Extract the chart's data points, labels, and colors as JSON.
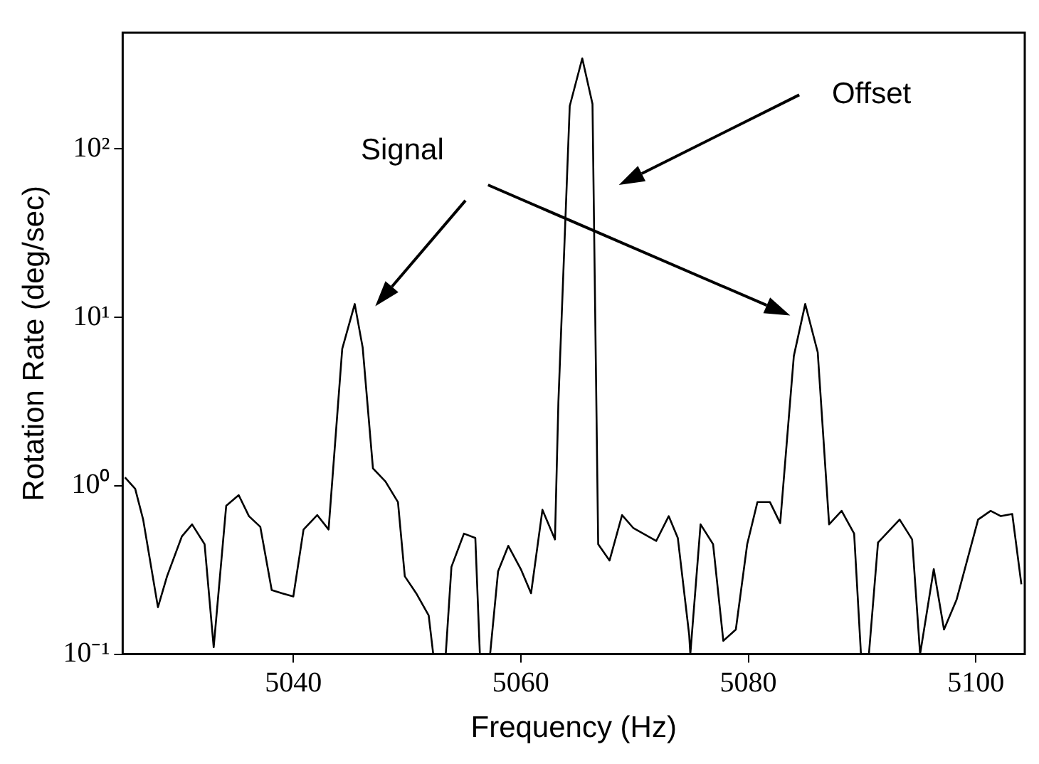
{
  "chart_data": {
    "type": "line",
    "xlabel": "Frequency (Hz)",
    "ylabel": "Rotation Rate (deg/sec)",
    "color": "#000000",
    "marker": "none",
    "line_style": "solid",
    "log": "y",
    "legend": false,
    "grid": false,
    "x": [
      5025.2,
      5026.1,
      5026.8,
      5028.1,
      5028.9,
      5030.2,
      5031.1,
      5032.2,
      5033.0,
      5034.1,
      5035.2,
      5036.1,
      5037.1,
      5038.1,
      5039.0,
      5040.0,
      5040.9,
      5042.1,
      5043.1,
      5044.3,
      5045.4,
      5046.1,
      5047.0,
      5048.1,
      5049.2,
      5049.8,
      5050.8,
      5051.9,
      5052.3,
      5052.8,
      5053.4,
      5053.9,
      5055.0,
      5056.0,
      5056.4,
      5056.8,
      5057.3,
      5058.0,
      5058.9,
      5060.0,
      5060.9,
      5061.9,
      5063.0,
      5063.3,
      5064.3,
      5065.4,
      5066.3,
      5066.8,
      5067.8,
      5068.9,
      5069.9,
      5071.9,
      5073.0,
      5073.8,
      5074.8,
      5074.9,
      5075.8,
      5076.9,
      5077.8,
      5078.9,
      5079.9,
      5080.8,
      5081.9,
      5082.8,
      5084.0,
      5085.0,
      5086.1,
      5087.1,
      5088.2,
      5089.3,
      5089.9,
      5090.2,
      5090.6,
      5091.4,
      5093.3,
      5094.4,
      5095.1,
      5096.3,
      5097.2,
      5098.3,
      5100.2,
      5101.3,
      5102.2,
      5103.2,
      5104.0
    ],
    "values": [
      1.12,
      0.96,
      0.63,
      0.19,
      0.29,
      0.5,
      0.59,
      0.45,
      0.11,
      0.76,
      0.88,
      0.66,
      0.57,
      0.24,
      0.23,
      0.22,
      0.55,
      0.67,
      0.55,
      6.5,
      12,
      6.6,
      1.27,
      1.06,
      0.8,
      0.29,
      0.23,
      0.17,
      0.1,
      null,
      0.1,
      0.33,
      0.52,
      0.49,
      0.1,
      null,
      0.1,
      0.31,
      0.44,
      0.32,
      0.23,
      0.72,
      0.48,
      3.1,
      180,
      345,
      185,
      0.45,
      0.36,
      0.67,
      0.56,
      0.47,
      0.66,
      0.49,
      0.13,
      0.1,
      0.59,
      0.45,
      0.12,
      0.14,
      0.45,
      0.8,
      0.8,
      0.6,
      5.9,
      12,
      6.2,
      0.59,
      0.71,
      0.52,
      0.1,
      null,
      0.1,
      0.46,
      0.63,
      0.48,
      0.1,
      0.32,
      0.14,
      0.21,
      0.63,
      0.71,
      0.66,
      0.68,
      0.26
    ],
    "xlim": [
      5025,
      5104.3
    ],
    "xticks": [
      5040,
      5060,
      5080,
      5100
    ],
    "ylim": [
      0.1,
      490
    ],
    "yticks": [
      {
        "value": 0.1,
        "label": "10⁻¹"
      },
      {
        "value": 1,
        "label": "10⁰"
      },
      {
        "value": 10,
        "label": "10¹"
      },
      {
        "value": 100,
        "label": "10²"
      }
    ],
    "annotations": [
      "Signal",
      "Offset"
    ]
  }
}
